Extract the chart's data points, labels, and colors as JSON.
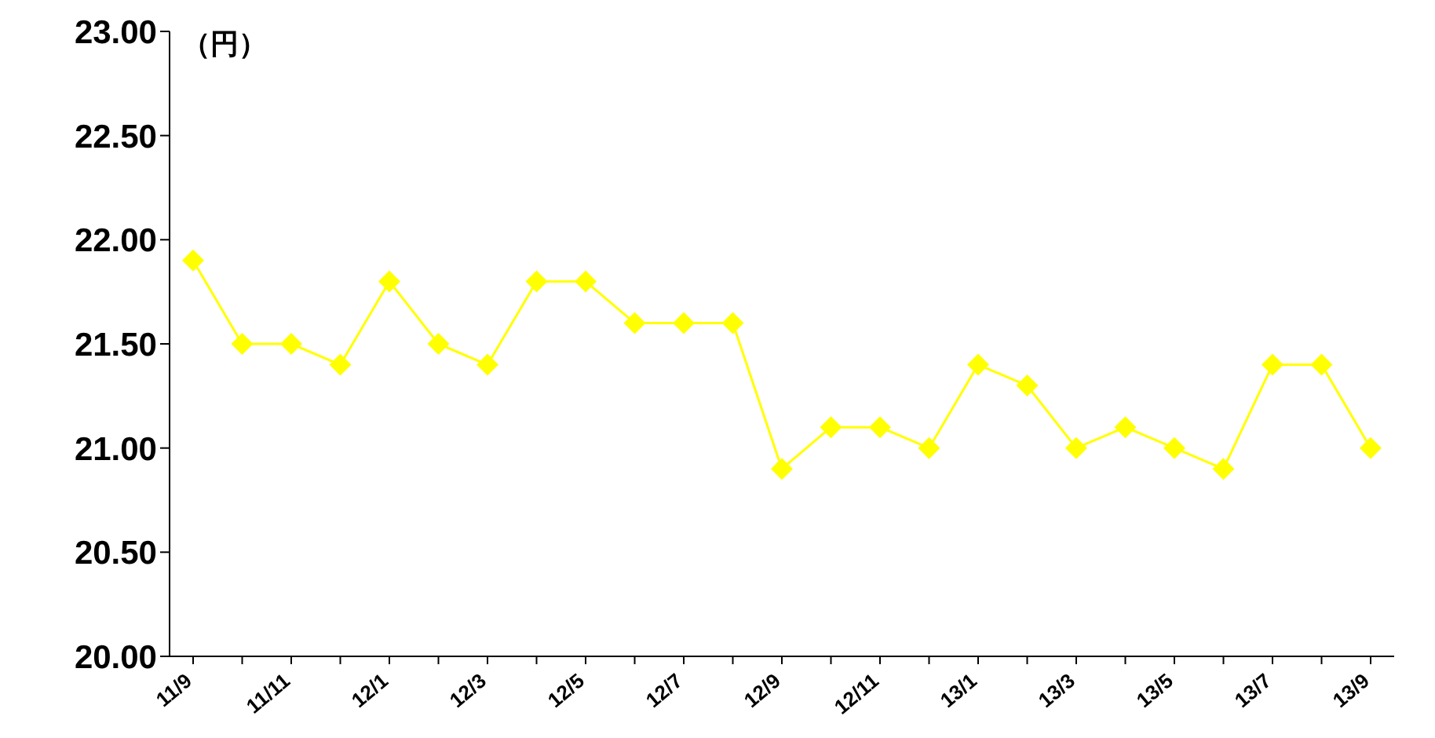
{
  "chart_data": {
    "type": "line",
    "ylabel": "（円）",
    "categories": [
      "11/9",
      null,
      "11/11",
      null,
      "12/1",
      null,
      "12/3",
      null,
      "12/5",
      null,
      "12/7",
      null,
      "12/9",
      null,
      "12/11",
      null,
      "13/1",
      null,
      "13/3",
      null,
      "13/5",
      null,
      "13/7",
      null,
      "13/9"
    ],
    "series": [
      {
        "color": "#ffff00",
        "values": [
          21.9,
          21.5,
          21.5,
          21.4,
          21.8,
          21.5,
          21.4,
          21.8,
          21.8,
          21.6,
          21.6,
          21.6,
          20.9,
          21.1,
          21.1,
          21.0,
          21.4,
          21.3,
          21.0,
          21.1,
          21.0,
          20.9,
          21.4,
          21.4,
          21.0
        ]
      }
    ],
    "ylim": [
      20,
      23
    ],
    "yticks": [
      {
        "value": 20,
        "label": "20.00"
      },
      {
        "value": 20.5,
        "label": "20.50"
      },
      {
        "value": 21,
        "label": "21.00"
      },
      {
        "value": 21.5,
        "label": "21.50"
      },
      {
        "value": 22,
        "label": "22.00"
      },
      {
        "value": 22.5,
        "label": "22.50"
      },
      {
        "value": 23,
        "label": "23.00"
      }
    ],
    "grid": false,
    "legend": false,
    "marker": "diamond",
    "line_style": "solid"
  }
}
